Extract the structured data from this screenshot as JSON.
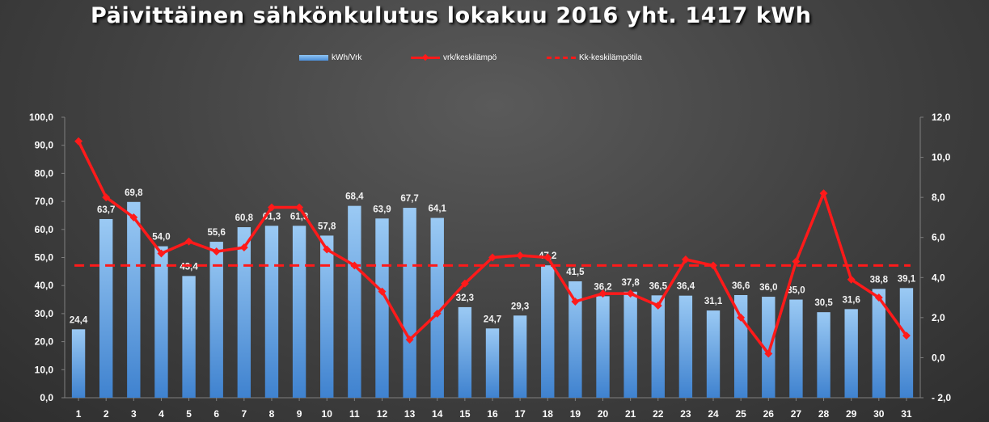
{
  "chart_data": {
    "type": "bar",
    "title": "Päivittäinen sähkönkulutus lokakuu 2016 yht. 1417 kWh",
    "legend_position": "top",
    "grid": false,
    "categories": [
      "1",
      "2",
      "3",
      "4",
      "5",
      "6",
      "7",
      "8",
      "9",
      "10",
      "11",
      "12",
      "13",
      "14",
      "15",
      "16",
      "17",
      "18",
      "19",
      "20",
      "21",
      "22",
      "23",
      "24",
      "25",
      "26",
      "27",
      "28",
      "29",
      "30",
      "31"
    ],
    "series": [
      {
        "name": "kWh/Vrk",
        "type": "bar",
        "axis": "left",
        "color": "#5b9bd5",
        "values": [
          24.4,
          63.7,
          69.8,
          54.0,
          43.4,
          55.6,
          60.8,
          61.3,
          61.3,
          57.8,
          68.4,
          63.9,
          67.7,
          64.1,
          32.3,
          24.7,
          29.3,
          47.2,
          41.5,
          36.2,
          37.8,
          36.5,
          36.4,
          31.1,
          36.6,
          36.0,
          35.0,
          30.5,
          31.6,
          38.8,
          39.1
        ],
        "labels": [
          "24,4",
          "63,7",
          "69,8",
          "54,0",
          "43,4",
          "55,6",
          "60,8",
          "61,3",
          "61,3",
          "57,8",
          "68,4",
          "63,9",
          "67,7",
          "64,1",
          "32,3",
          "24,7",
          "29,3",
          "47,2",
          "41,5",
          "36,2",
          "37,8",
          "36,5",
          "36,4",
          "31,1",
          "36,6",
          "36,0",
          "35,0",
          "30,5",
          "31,6",
          "38,8",
          "39,1"
        ]
      },
      {
        "name": "vrk/keskilämpö",
        "type": "line",
        "axis": "right",
        "color": "#ff1a1a",
        "values": [
          10.8,
          8.0,
          7.0,
          5.2,
          5.8,
          5.3,
          5.5,
          7.5,
          7.5,
          5.4,
          4.6,
          3.3,
          0.9,
          2.2,
          3.7,
          5.0,
          5.1,
          5.0,
          2.8,
          3.2,
          3.2,
          2.6,
          4.9,
          4.6,
          2.0,
          0.2,
          4.8,
          8.2,
          3.9,
          3.0,
          1.1
        ]
      },
      {
        "name": "Kk-keskilämpötila",
        "type": "dashed-line",
        "axis": "right",
        "color": "#ff1a1a",
        "value": 4.6
      }
    ],
    "y_left": {
      "min": 0,
      "max": 100,
      "step": 10,
      "tick_labels": [
        "0,0",
        "10,0",
        "20,0",
        "30,0",
        "40,0",
        "50,0",
        "60,0",
        "70,0",
        "80,0",
        "90,0",
        "100,0"
      ]
    },
    "y_right": {
      "min": -2,
      "max": 12,
      "step": 2,
      "tick_labels": [
        "- 2,0",
        "0,0",
        "2,0",
        "4,0",
        "6,0",
        "8,0",
        "10,0",
        "12,0"
      ]
    }
  }
}
